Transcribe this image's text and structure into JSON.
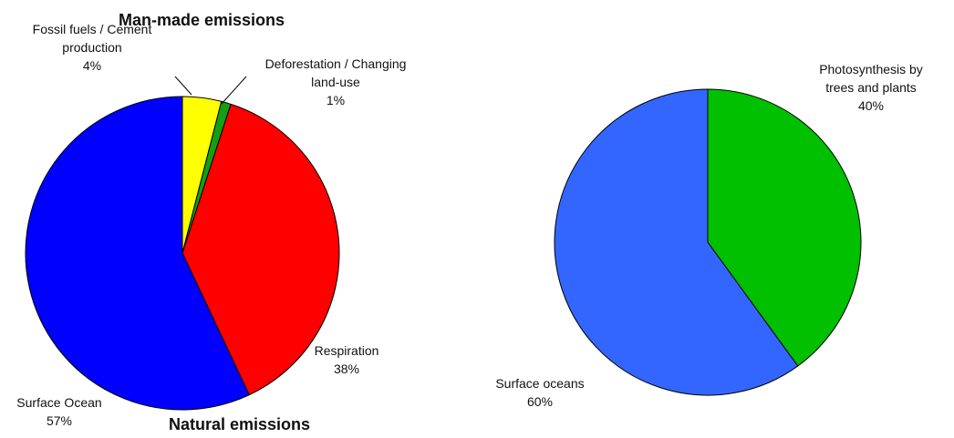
{
  "chart_data": [
    {
      "type": "pie",
      "annotations": [
        "Man-made emissions",
        "Natural emissions"
      ],
      "slices": [
        {
          "label": [
            "Fossil fuels / Cement",
            "production"
          ],
          "value": 4,
          "value_label": "4%",
          "color": "#ffff00"
        },
        {
          "label": [
            "Deforestation / Changing",
            "land-use"
          ],
          "value": 1,
          "value_label": "1%",
          "color": "#13a013"
        },
        {
          "label": [
            "Respiration"
          ],
          "value": 38,
          "value_label": "38%",
          "color": "#ff0000"
        },
        {
          "label": [
            "Surface Ocean"
          ],
          "value": 57,
          "value_label": "57%",
          "color": "#0000ff"
        }
      ]
    },
    {
      "type": "pie",
      "slices": [
        {
          "label": [
            "Photosynthesis by",
            "trees and plants"
          ],
          "value": 40,
          "value_label": "40%",
          "color": "#00c000"
        },
        {
          "label": [
            "Surface oceans"
          ],
          "value": 60,
          "value_label": "60%",
          "color": "#3366ff"
        }
      ]
    }
  ]
}
